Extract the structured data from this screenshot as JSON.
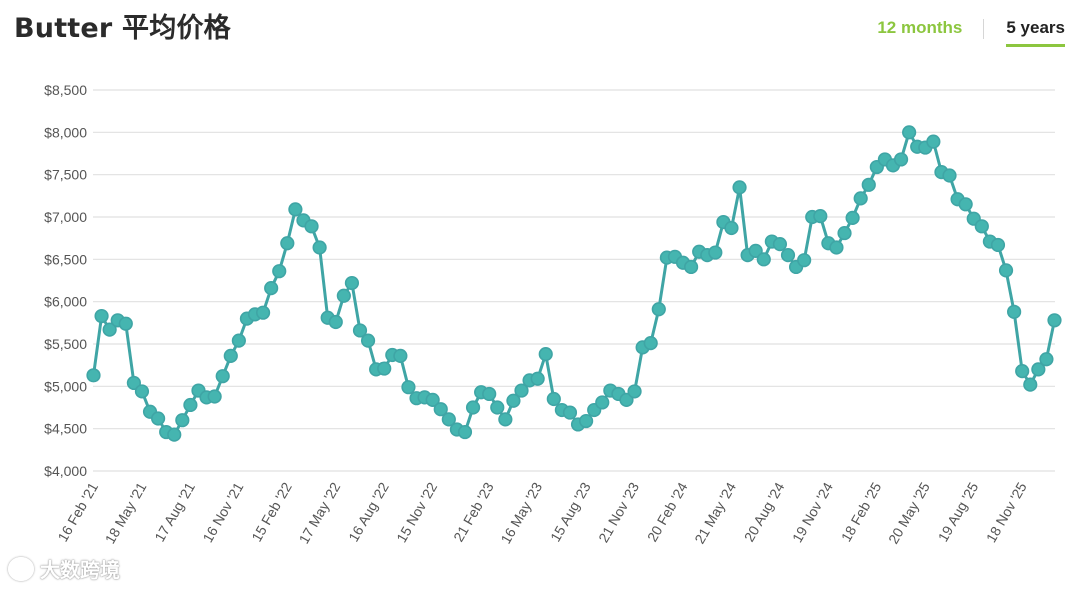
{
  "header": {
    "title": "Butter 平均价格",
    "tabs": [
      {
        "label": "12 months",
        "active": false
      },
      {
        "label": "5 years",
        "active": true
      }
    ]
  },
  "watermark": {
    "text": "大数跨境"
  },
  "colors": {
    "line": "#3fa5a5",
    "marker_fill": "#45b5b0",
    "grid": "#e1e1e1",
    "active_tab": "#8cc63f"
  },
  "chart_data": {
    "type": "line",
    "title": "Butter 平均价格",
    "ylim": [
      4000,
      8500
    ],
    "yticks": [
      4000,
      4500,
      5000,
      5500,
      6000,
      6500,
      7000,
      7500,
      8000,
      8500
    ],
    "ytick_labels": [
      "$4,000",
      "$4,500",
      "$5,000",
      "$5,500",
      "$6,000",
      "$6,500",
      "$7,000",
      "$7,500",
      "$8,000",
      "$8,500"
    ],
    "xtick_labels": [
      {
        "label": "16 Feb '21",
        "index": 0
      },
      {
        "label": "18 May '21",
        "index": 6
      },
      {
        "label": "17 Aug '21",
        "index": 12
      },
      {
        "label": "16 Nov '21",
        "index": 18
      },
      {
        "label": "15 Feb '22",
        "index": 24
      },
      {
        "label": "17 May '22",
        "index": 30
      },
      {
        "label": "16 Aug '22",
        "index": 36
      },
      {
        "label": "15 Nov '22",
        "index": 42
      },
      {
        "label": "21 Feb '23",
        "index": 49
      },
      {
        "label": "16 May '23",
        "index": 55
      },
      {
        "label": "15 Aug '23",
        "index": 61
      },
      {
        "label": "21 Nov '23",
        "index": 67
      },
      {
        "label": "20 Feb '24",
        "index": 73
      },
      {
        "label": "21 May '24",
        "index": 79
      },
      {
        "label": "20 Aug '24",
        "index": 85
      },
      {
        "label": "19 Nov '24",
        "index": 91
      },
      {
        "label": "18 Feb '25",
        "index": 97
      },
      {
        "label": "20 May '25",
        "index": 103
      },
      {
        "label": "19 Aug '25",
        "index": 109
      },
      {
        "label": "18 Nov '25",
        "index": 115
      }
    ],
    "series": [
      {
        "values": [
          5130,
          5830,
          5670,
          5780,
          5740,
          5040,
          4940,
          4700,
          4620,
          4460,
          4430,
          4600,
          4780,
          4950,
          4870,
          4880,
          5120,
          5360,
          5540,
          5800,
          5850,
          5870,
          6160,
          6360,
          6690,
          7090,
          6960,
          6890,
          6640,
          5810,
          5760,
          6070,
          6220,
          5660,
          5540,
          5200,
          5210,
          5370,
          5360,
          4990,
          4860,
          4870,
          4840,
          4730,
          4610,
          4490,
          4460,
          4750,
          4930,
          4910,
          4750,
          4610,
          4830,
          4950,
          5070,
          5090,
          5380,
          4850,
          4720,
          4690,
          4550,
          4590,
          4720,
          4810,
          4950,
          4910,
          4840,
          4940,
          5460,
          5510,
          5910,
          6520,
          6530,
          6460,
          6410,
          6590,
          6550,
          6580,
          6940,
          6870,
          7350,
          6550,
          6600,
          6500,
          6710,
          6680,
          6550,
          6410,
          6490,
          7000,
          7010,
          6690,
          6640,
          6810,
          6990,
          7220,
          7380,
          7590,
          7680,
          7610,
          7680,
          8000,
          7830,
          7820,
          7890,
          7530,
          7490,
          7210,
          7150,
          6980,
          6890,
          6710,
          6670,
          6370,
          5880,
          5180,
          5020,
          5200,
          5320,
          5780
        ]
      }
    ]
  }
}
